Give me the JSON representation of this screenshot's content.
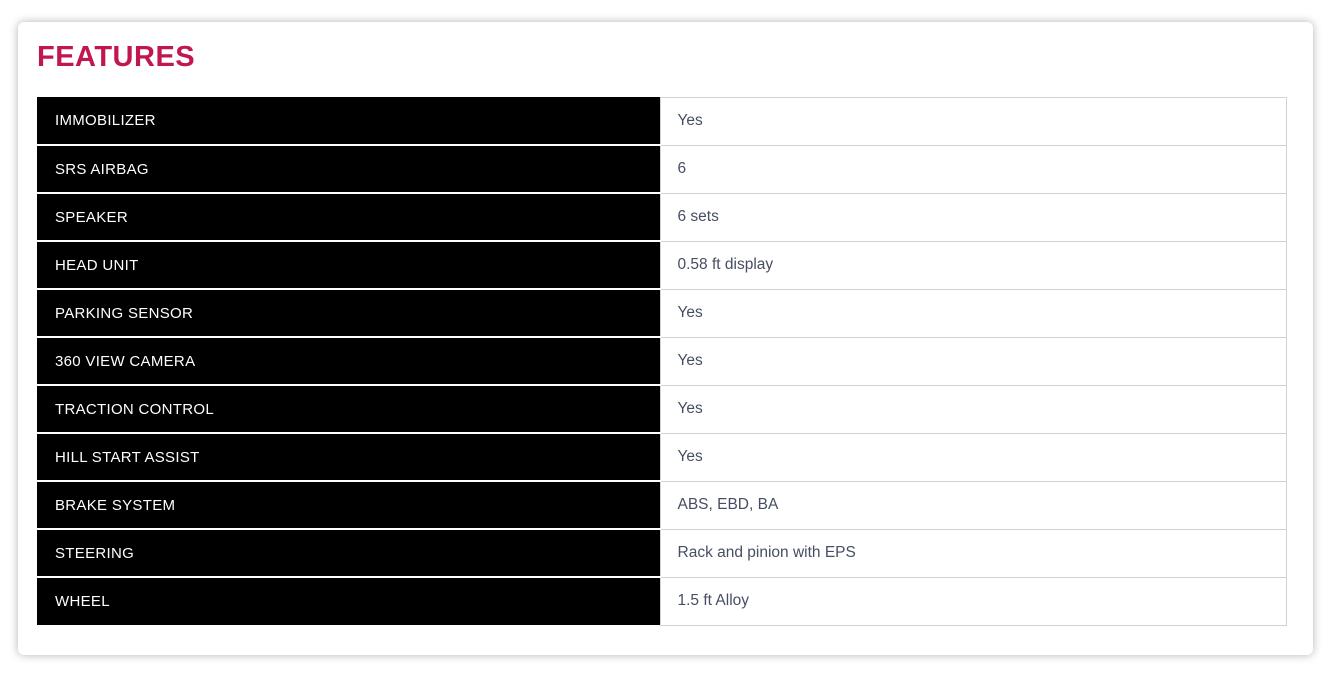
{
  "header": {
    "title": "FEATURES"
  },
  "table": {
    "rows": [
      {
        "label": "IMMOBILIZER",
        "value": "Yes"
      },
      {
        "label": "SRS AIRBAG",
        "value": "6"
      },
      {
        "label": "SPEAKER",
        "value": "6 sets"
      },
      {
        "label": "HEAD UNIT",
        "value": "0.58 ft display"
      },
      {
        "label": "PARKING SENSOR",
        "value": "Yes"
      },
      {
        "label": "360 VIEW CAMERA",
        "value": "Yes"
      },
      {
        "label": "TRACTION CONTROL",
        "value": "Yes"
      },
      {
        "label": "HILL START ASSIST",
        "value": "Yes"
      },
      {
        "label": "BRAKE SYSTEM",
        "value": "ABS, EBD, BA"
      },
      {
        "label": "STEERING",
        "value": "Rack and pinion with EPS"
      },
      {
        "label": "WHEEL",
        "value": "1.5 ft Alloy"
      }
    ]
  },
  "colors": {
    "title": "#C2164F",
    "label_background": "#000000",
    "label_text": "#FFFFFF",
    "value_text": "#454E63",
    "cell_border": "#D2D2D2"
  }
}
